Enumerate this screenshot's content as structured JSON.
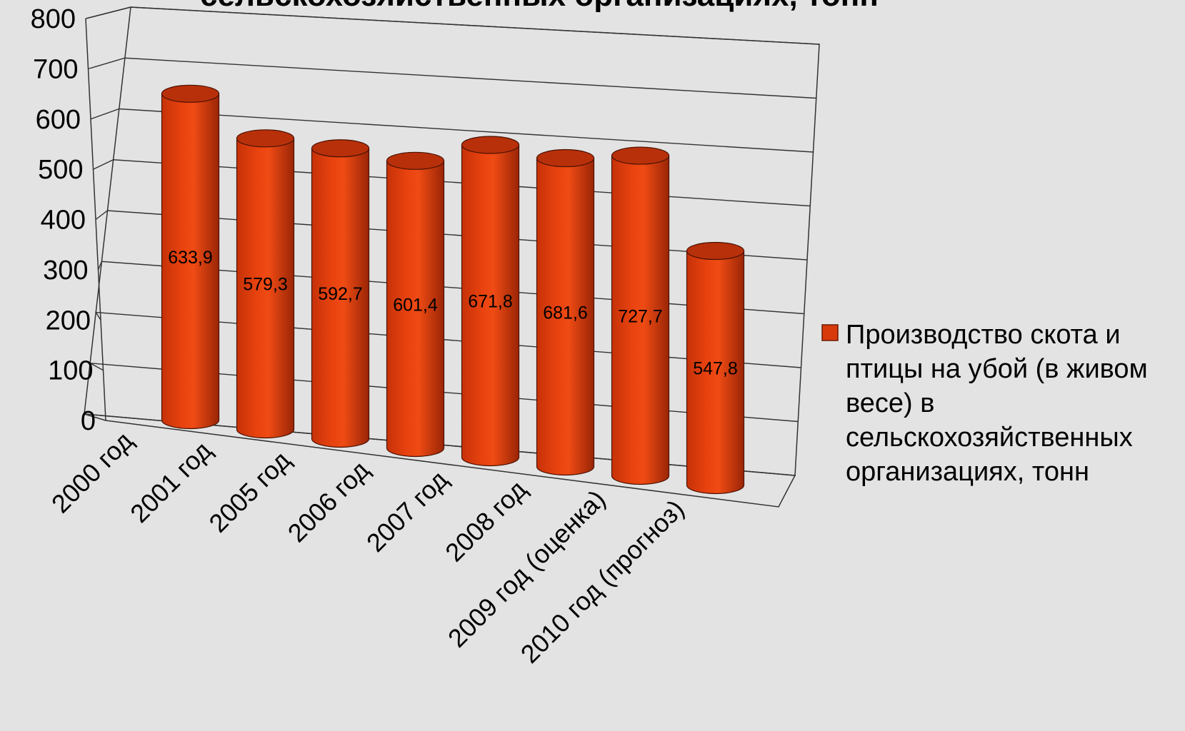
{
  "chart_data": {
    "type": "bar",
    "style": "3d-cylinder",
    "title": "сельскохозяйственных организациях, тонн",
    "categories": [
      "2000 год",
      "2001 год",
      "2005 год",
      "2006 год",
      "2007 год",
      "2008 год",
      "2009 год (оценка)",
      "2010 год (прогноз)"
    ],
    "series": [
      {
        "name": "Производство скота и птицы на убой (в живом весе) в сельскохозяйственных организациях, тонн",
        "values": [
          633.9,
          579.3,
          592.7,
          601.4,
          671.8,
          681.6,
          727.7,
          547.8
        ]
      }
    ],
    "data_labels": [
      "633,9",
      "579,3",
      "592,7",
      "601,4",
      "671,8",
      "681,6",
      "727,7",
      "547,8"
    ],
    "ylim": [
      0,
      800
    ],
    "yticks": [
      0,
      100,
      200,
      300,
      400,
      500,
      600,
      700,
      800
    ],
    "legend": {
      "position": "right",
      "lines": [
        "Производство скота и",
        "птицы на убой (в живом",
        "весе) в",
        "сельскохозяйственных",
        "организациях, тонн"
      ]
    },
    "grid": true,
    "colors": {
      "bar": "#d83a0c",
      "bar_dark": "#7a1a04",
      "bar_light": "#f0521a",
      "background": "#e3e3e3"
    }
  }
}
